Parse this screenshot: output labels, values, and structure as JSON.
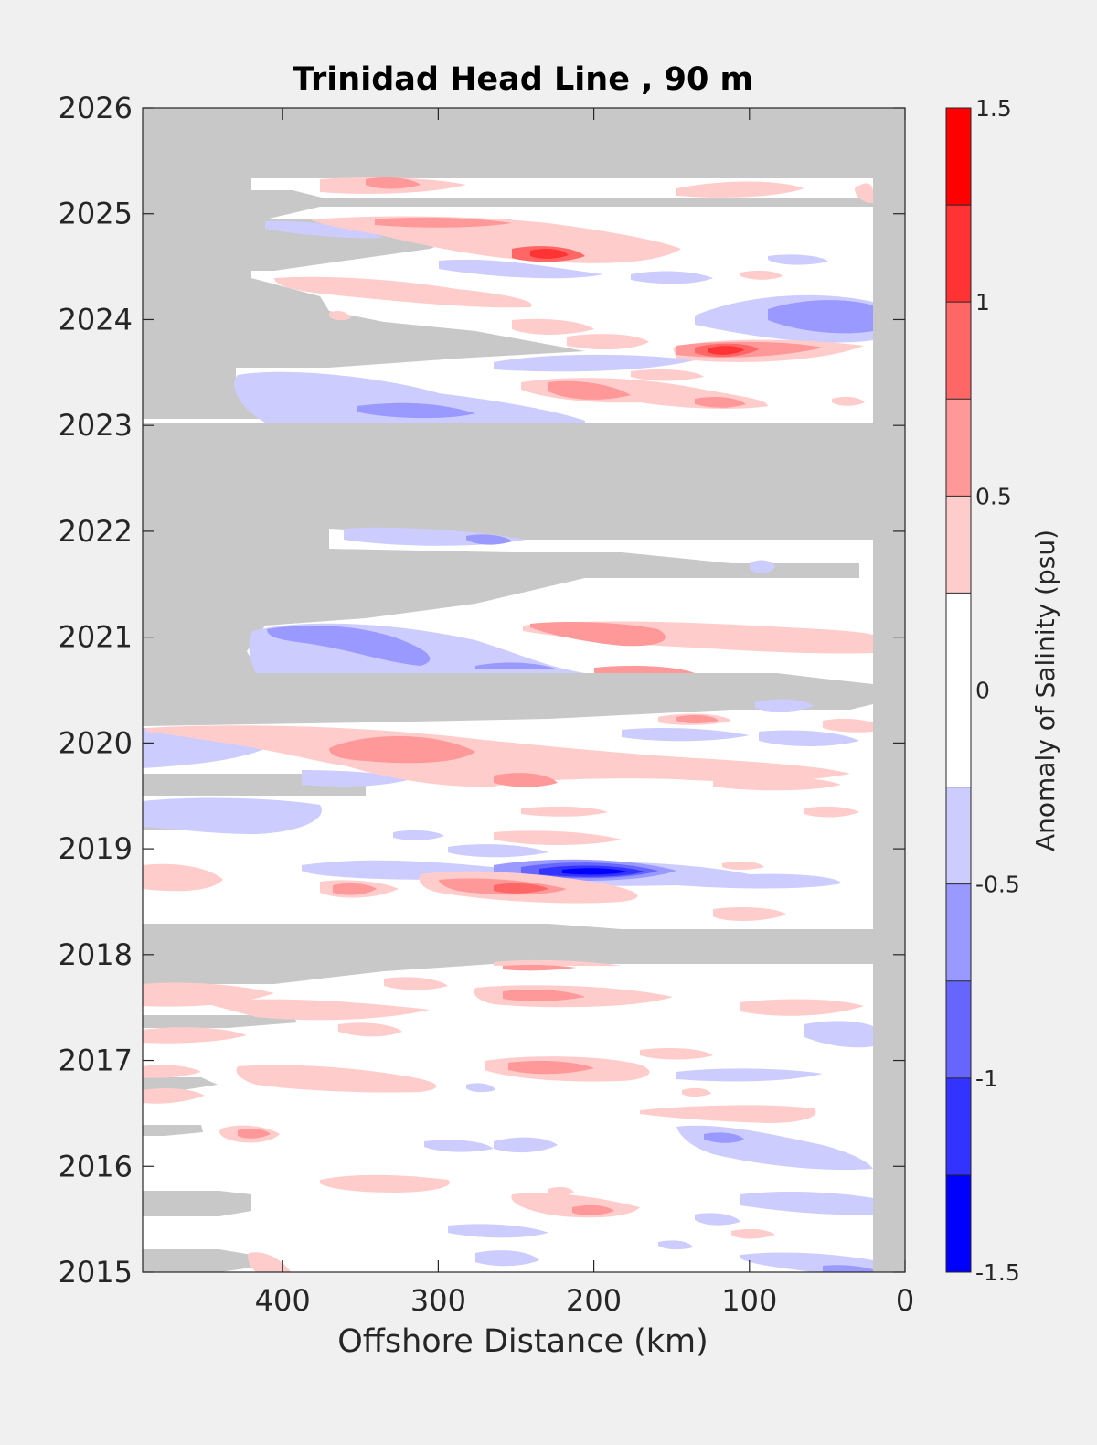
{
  "chart_data": {
    "type": "heatmap",
    "title": "Trinidad Head Line , 90 m",
    "xlabel": "Offshore Distance (km)",
    "ylabel": "",
    "xlim": [
      490,
      0
    ],
    "ylim": [
      2015,
      2026
    ],
    "x_ticks": [
      400,
      300,
      200,
      100,
      0
    ],
    "y_ticks": [
      2015,
      2016,
      2017,
      2018,
      2019,
      2020,
      2021,
      2022,
      2023,
      2024,
      2025,
      2026
    ],
    "grid": false,
    "colorbar": {
      "label": "Anomaly of Salinity (psu)",
      "range": [
        -1.5,
        1.5
      ],
      "ticks": [
        -1.5,
        -1,
        -0.5,
        0,
        0.5,
        1,
        1.5
      ],
      "tick_labels": [
        "-1.5",
        "-1",
        "-0.5",
        "0",
        "0.5",
        "1",
        "1.5"
      ],
      "levels": [
        -1.5,
        -1.25,
        -1.0,
        -0.75,
        -0.5,
        -0.25,
        0.25,
        0.5,
        0.75,
        1.0,
        1.25,
        1.5
      ],
      "colors": [
        "#0000ff",
        "#3333ff",
        "#6666ff",
        "#9999ff",
        "#ccccff",
        "#ffffff",
        "#ffcccc",
        "#ff9999",
        "#ff6666",
        "#ff3333",
        "#ff0000"
      ]
    },
    "missing_color": "#c8c8c8",
    "missing_data_bands": [
      {
        "x": [
          490,
          0
        ],
        "y": [
          2025.33,
          2026
        ]
      },
      {
        "x": [
          490,
          20
        ],
        "y": [
          2022.0,
          2023.0
        ]
      },
      {
        "x": [
          490,
          20
        ],
        "y": [
          2018.2,
          2018.3
        ]
      },
      {
        "x": [
          20,
          0
        ],
        "y": [
          2015,
          2026
        ]
      }
    ],
    "anomalies": [
      {
        "x": 190,
        "y": 2018.83,
        "value": -1.25
      },
      {
        "x": 230,
        "y": 2018.6,
        "value": 0.75
      },
      {
        "x": 115,
        "y": 2023.67,
        "value": 1.0
      },
      {
        "x": 230,
        "y": 2024.6,
        "value": 1.0
      },
      {
        "x": 40,
        "y": 2024.03,
        "value": -0.75
      },
      {
        "x": 320,
        "y": 2019.92,
        "value": 0.75
      },
      {
        "x": 340,
        "y": 2020.95,
        "value": -0.75
      },
      {
        "x": 170,
        "y": 2020.95,
        "value": 0.75
      },
      {
        "x": 300,
        "y": 2023.1,
        "value": -0.75
      },
      {
        "x": 230,
        "y": 2017.55,
        "value": 0.75
      },
      {
        "x": 220,
        "y": 2016.95,
        "value": 0.75
      },
      {
        "x": 120,
        "y": 2016.3,
        "value": -0.75
      },
      {
        "x": 440,
        "y": 2016.3,
        "value": 0.75
      },
      {
        "x": 200,
        "y": 2015.6,
        "value": 0.75
      },
      {
        "x": 80,
        "y": 2015.15,
        "value": -0.5
      }
    ]
  }
}
